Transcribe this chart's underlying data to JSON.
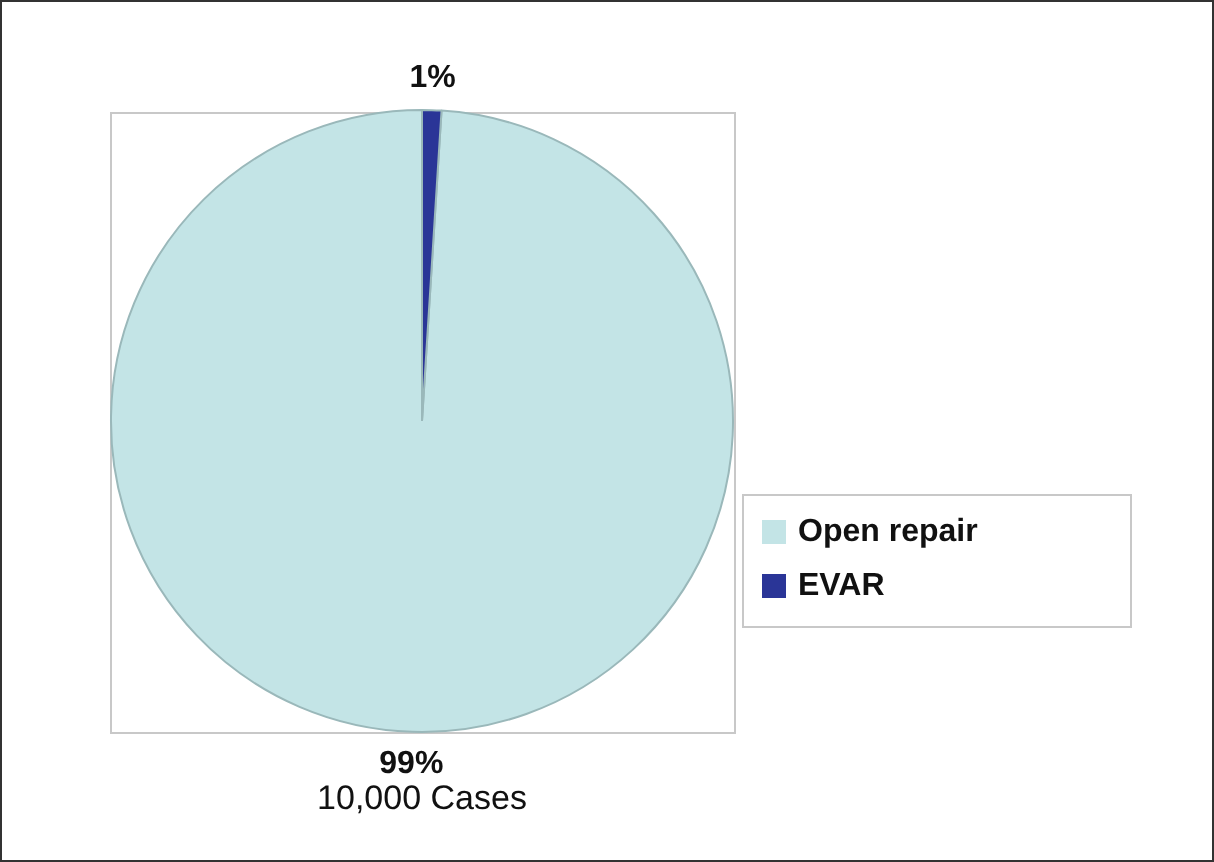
{
  "chart_data": {
    "type": "pie",
    "categories": [
      "Open repair",
      "EVAR"
    ],
    "values": [
      99,
      1
    ],
    "colors": [
      "#c3e4e6",
      "#2a3597"
    ],
    "value_labels": [
      "99%",
      "1%"
    ],
    "legend": "right",
    "annotations": [
      "10,000 Cases"
    ]
  }
}
